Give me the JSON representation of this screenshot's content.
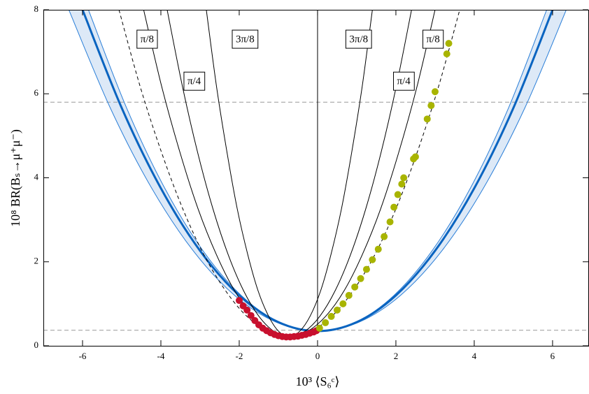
{
  "chart_data": {
    "type": "line",
    "xlabel": "10³ ⟨S₆ᶜ⟩",
    "ylabel": "10⁸ BR(Bₛ→μ⁺μ⁻)",
    "xlim": [
      -7,
      6.93
    ],
    "ylim": [
      0,
      8
    ],
    "xticks": [
      -6,
      -4,
      -2,
      0,
      2,
      4,
      6
    ],
    "yticks": [
      0,
      2,
      4,
      6,
      8
    ],
    "hlines": [
      5.8,
      0.37
    ],
    "hline_color": "#999999",
    "band_color": "#dde9f7",
    "annotations": [
      "π/8",
      "π/4",
      "3π/8",
      "3π/8",
      "π/8",
      "π/4"
    ],
    "series": [
      {
        "type": "line",
        "style": "band-edge",
        "color": "#2b7fd8",
        "x": [
          -6.35,
          -5.292,
          -4.233,
          -3.175,
          -2.117,
          -1.058,
          0,
          1.058,
          2.117,
          3.175,
          4.233,
          5.292,
          6.35
        ],
        "values": [
          8,
          5.663,
          3.75,
          2.263,
          1.2,
          0.563,
          0.35,
          0.563,
          1.2,
          2.263,
          3.75,
          5.663,
          8
        ]
      },
      {
        "type": "line",
        "style": "band-edge",
        "color": "#2b7fd8",
        "x": [
          -5.85,
          -4.875,
          -3.9,
          -2.925,
          -1.95,
          -0.975,
          0,
          0.975,
          1.95,
          2.925,
          3.9,
          4.875,
          5.85
        ],
        "values": [
          8,
          5.663,
          3.75,
          2.263,
          1.2,
          0.563,
          0.35,
          0.563,
          1.2,
          2.263,
          3.75,
          5.663,
          8
        ]
      },
      {
        "type": "line",
        "style": "thick",
        "color": "#0a64c0",
        "x": [
          -6,
          -5,
          -4,
          -3,
          -2,
          -1,
          0,
          1,
          2,
          3,
          4,
          5,
          6
        ],
        "values": [
          8,
          5.663,
          3.75,
          2.263,
          1.2,
          0.563,
          0.35,
          0.563,
          1.2,
          2.263,
          3.75,
          5.663,
          8
        ]
      },
      {
        "type": "line",
        "style": "dashed",
        "color": "#000000",
        "x": [
          -5.07,
          -4.53,
          -3.98,
          -3.44,
          -2.9,
          -2.35,
          -1.81,
          -1.26,
          -0.72,
          -0.18,
          0.37,
          0.91,
          1.46,
          2.0,
          2.54,
          3.09,
          3.63
        ],
        "values": [
          8,
          6.176,
          4.596,
          3.259,
          2.165,
          1.314,
          0.706,
          0.342,
          0.22,
          0.342,
          0.706,
          1.314,
          2.165,
          3.259,
          4.596,
          6.176,
          8
        ]
      },
      {
        "type": "line",
        "style": "thin",
        "color": "#000000",
        "x": [
          -4.44,
          -3.98,
          -3.51,
          -3.05,
          -2.58,
          -2.12,
          -1.65,
          -1.19,
          -0.72,
          -0.26,
          0.21,
          0.68,
          1.14,
          1.61,
          2.07,
          2.54,
          3.0
        ],
        "values": [
          8,
          6.176,
          4.596,
          3.259,
          2.165,
          1.314,
          0.706,
          0.342,
          0.22,
          0.342,
          0.706,
          1.314,
          2.165,
          3.259,
          4.596,
          6.176,
          8
        ]
      },
      {
        "type": "line",
        "style": "thin",
        "color": "#000000",
        "x": [
          -3.84,
          -3.45,
          -3.06,
          -2.67,
          -2.28,
          -1.89,
          -1.5,
          -1.11,
          -0.72,
          -0.33,
          0.06,
          0.45,
          0.84,
          1.23,
          1.62,
          2.01,
          2.4
        ],
        "values": [
          8,
          6.176,
          4.596,
          3.259,
          2.165,
          1.314,
          0.706,
          0.342,
          0.22,
          0.342,
          0.706,
          1.314,
          2.165,
          3.259,
          4.596,
          6.176,
          8
        ]
      },
      {
        "type": "line",
        "style": "thin",
        "color": "#000000",
        "x": [
          -2.84,
          -2.58,
          -2.31,
          -2.05,
          -1.78,
          -1.52,
          -1.25,
          -0.99,
          -0.72,
          -0.46,
          -0.19,
          0.08,
          0.34,
          0.61,
          0.87,
          1.14,
          1.4
        ],
        "values": [
          8,
          6.176,
          4.596,
          3.259,
          2.165,
          1.314,
          0.706,
          0.342,
          0.22,
          0.342,
          0.706,
          1.314,
          2.165,
          3.259,
          4.596,
          6.176,
          8
        ]
      },
      {
        "type": "line",
        "style": "thin",
        "color": "#000000",
        "x": [
          0,
          0
        ],
        "values": [
          0.35,
          8
        ]
      },
      {
        "type": "scatter",
        "color": "#c8102e",
        "x": [
          -2.0,
          -1.9,
          -1.8,
          -1.7,
          -1.6,
          -1.5,
          -1.4,
          -1.3,
          -1.2,
          -1.1,
          -1.0,
          -0.9,
          -0.8,
          -0.7,
          -0.6,
          -0.5,
          -0.4,
          -0.3,
          -0.2,
          -0.1,
          -0.03
        ],
        "values": [
          1.08,
          0.95,
          0.85,
          0.72,
          0.6,
          0.5,
          0.42,
          0.36,
          0.31,
          0.27,
          0.24,
          0.22,
          0.21,
          0.21,
          0.22,
          0.23,
          0.25,
          0.27,
          0.3,
          0.33,
          0.36
        ]
      },
      {
        "type": "scatter",
        "color": "#a8b400",
        "x": [
          0.05,
          0.2,
          0.35,
          0.5,
          0.65,
          0.8,
          0.95,
          1.1,
          1.25,
          1.4,
          1.55,
          1.7,
          1.85,
          1.95,
          2.05,
          2.15,
          2.2,
          2.45,
          2.5,
          2.8,
          2.9,
          3.0,
          3.3,
          3.35
        ],
        "values": [
          0.42,
          0.55,
          0.7,
          0.85,
          1.0,
          1.2,
          1.4,
          1.6,
          1.82,
          2.05,
          2.3,
          2.6,
          2.95,
          3.3,
          3.6,
          3.85,
          4.0,
          4.45,
          4.5,
          5.4,
          5.72,
          6.05,
          6.95,
          7.2
        ]
      }
    ]
  }
}
